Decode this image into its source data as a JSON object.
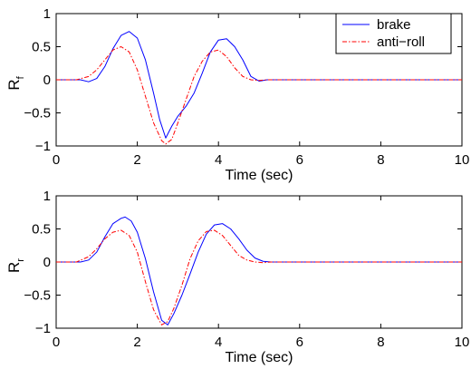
{
  "chart_data": [
    {
      "type": "line",
      "ylabel_main": "R",
      "ylabel_sub": "f",
      "xlabel": "Time (sec)",
      "xlim": [
        0,
        10
      ],
      "ylim": [
        -1,
        1
      ],
      "xticks": [
        "0",
        "2",
        "4",
        "6",
        "8",
        "10"
      ],
      "yticks": [
        "1",
        "0.5",
        "0",
        "−0.5",
        "−1"
      ],
      "legend": {
        "position": "top-right"
      },
      "series": [
        {
          "name": "brake",
          "color": "#0000ff",
          "style": "solid",
          "x": [
            0,
            0.6,
            0.8,
            1.0,
            1.2,
            1.4,
            1.6,
            1.8,
            2.0,
            2.2,
            2.4,
            2.55,
            2.7,
            2.85,
            3.0,
            3.2,
            3.4,
            3.6,
            3.8,
            4.0,
            4.2,
            4.4,
            4.6,
            4.8,
            5.0,
            5.2,
            5.5,
            6.0,
            10.0
          ],
          "y": [
            0,
            0,
            -0.03,
            0.02,
            0.2,
            0.47,
            0.67,
            0.73,
            0.63,
            0.3,
            -0.2,
            -0.6,
            -0.88,
            -0.7,
            -0.55,
            -0.4,
            -0.2,
            0.1,
            0.42,
            0.6,
            0.62,
            0.5,
            0.3,
            0.05,
            -0.02,
            0,
            0,
            0,
            0
          ]
        },
        {
          "name": "anti−roll",
          "color": "#ff0000",
          "style": "dashdot",
          "x": [
            0,
            0.5,
            0.8,
            1.0,
            1.2,
            1.4,
            1.6,
            1.8,
            2.0,
            2.2,
            2.4,
            2.6,
            2.7,
            2.85,
            3.0,
            3.2,
            3.4,
            3.6,
            3.8,
            4.0,
            4.2,
            4.4,
            4.6,
            4.8,
            5.0,
            5.2,
            5.5,
            10.0
          ],
          "y": [
            0,
            0,
            0.05,
            0.15,
            0.3,
            0.45,
            0.5,
            0.42,
            0.15,
            -0.25,
            -0.65,
            -0.92,
            -0.97,
            -0.9,
            -0.65,
            -0.3,
            0.05,
            0.28,
            0.42,
            0.45,
            0.35,
            0.18,
            0.05,
            0,
            -0.01,
            0,
            0,
            0
          ]
        }
      ]
    },
    {
      "type": "line",
      "ylabel_main": "R",
      "ylabel_sub": "r",
      "xlabel": "Time (sec)",
      "xlim": [
        0,
        10
      ],
      "ylim": [
        -1,
        1
      ],
      "xticks": [
        "0",
        "2",
        "4",
        "6",
        "8",
        "10"
      ],
      "yticks": [
        "1",
        "0.5",
        "0",
        "−0.5",
        "−1"
      ],
      "series": [
        {
          "name": "brake",
          "color": "#0000ff",
          "style": "solid",
          "x": [
            0,
            0.6,
            0.8,
            1.0,
            1.2,
            1.4,
            1.6,
            1.7,
            1.85,
            2.0,
            2.2,
            2.4,
            2.6,
            2.75,
            2.9,
            3.1,
            3.3,
            3.5,
            3.7,
            3.9,
            4.1,
            4.3,
            4.5,
            4.7,
            4.9,
            5.1,
            5.3,
            10.0
          ],
          "y": [
            0,
            0,
            0.03,
            0.15,
            0.38,
            0.58,
            0.66,
            0.68,
            0.62,
            0.45,
            0.05,
            -0.45,
            -0.88,
            -0.95,
            -0.78,
            -0.5,
            -0.18,
            0.15,
            0.42,
            0.56,
            0.58,
            0.5,
            0.35,
            0.18,
            0.06,
            0.01,
            0,
            0
          ]
        },
        {
          "name": "anti−roll",
          "color": "#ff0000",
          "style": "dashdot",
          "x": [
            0,
            0.5,
            0.8,
            1.0,
            1.2,
            1.4,
            1.6,
            1.8,
            2.0,
            2.2,
            2.4,
            2.6,
            2.75,
            2.9,
            3.1,
            3.3,
            3.5,
            3.7,
            3.9,
            4.1,
            4.3,
            4.5,
            4.7,
            4.9,
            5.1,
            5.3,
            10.0
          ],
          "y": [
            0,
            0,
            0.08,
            0.2,
            0.35,
            0.45,
            0.48,
            0.4,
            0.15,
            -0.3,
            -0.72,
            -0.95,
            -0.9,
            -0.7,
            -0.35,
            0.05,
            0.32,
            0.46,
            0.48,
            0.4,
            0.25,
            0.1,
            0.03,
            0,
            -0.01,
            0,
            0
          ]
        }
      ]
    }
  ]
}
